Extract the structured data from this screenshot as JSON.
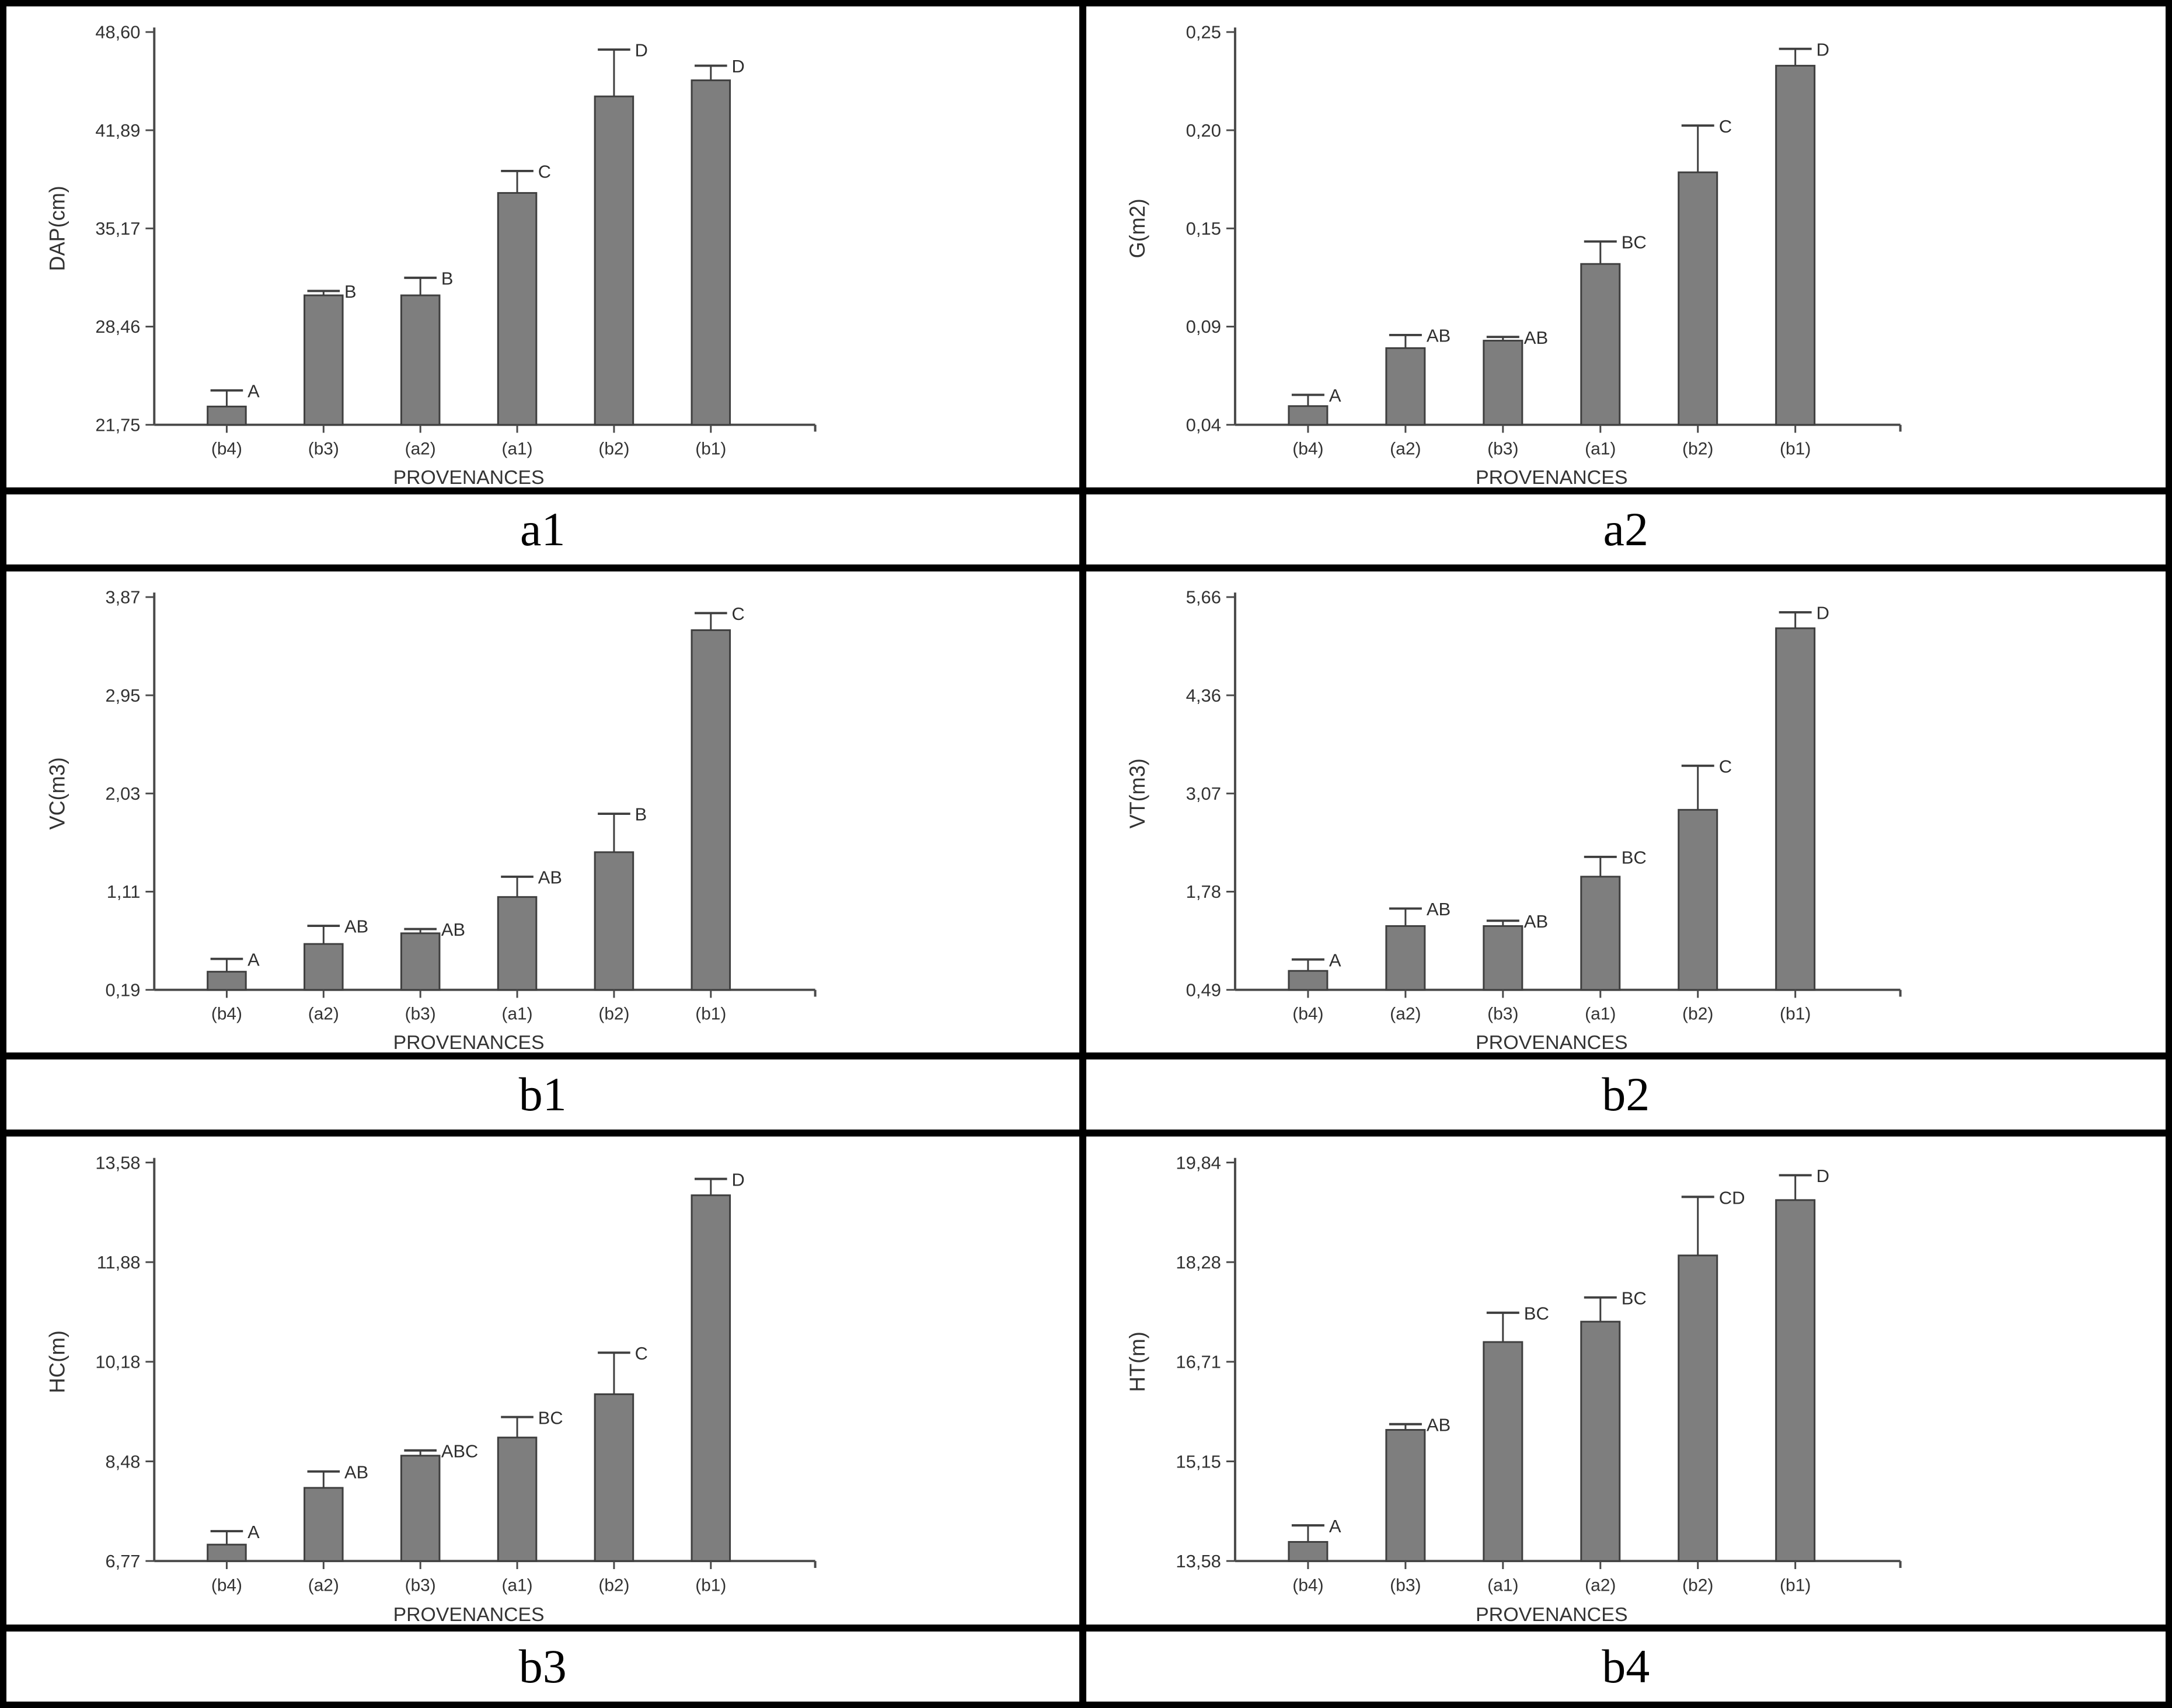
{
  "style": {
    "bar_fill": "#7e7e7e",
    "bar_edge": "#3f3f3f",
    "axis_color": "#4a4a4a",
    "text_color": "#333333"
  },
  "chart_data": [
    {
      "type": "bar",
      "caption": "a1",
      "ylabel": "DAP(cm)",
      "xlabel": "PROVENANCES",
      "ytick_labels": [
        "48,60",
        "41,89",
        "35,17",
        "28,46",
        "21,75"
      ],
      "ymin": 21.75,
      "ymax": 48.6,
      "categories": [
        "(b4)",
        "(b3)",
        "(a2)",
        "(a1)",
        "(b2)",
        "(b1)"
      ],
      "values": [
        23.0,
        30.6,
        30.6,
        37.6,
        44.2,
        45.3
      ],
      "error_tops": [
        24.1,
        30.9,
        31.8,
        39.1,
        47.4,
        46.3
      ],
      "sig_letters": [
        "A",
        "B",
        "B",
        "C",
        "D",
        "D"
      ],
      "grid": false,
      "legend": "none"
    },
    {
      "type": "bar",
      "caption": "a2",
      "ylabel": "G(m2)",
      "xlabel": "PROVENANCES",
      "ytick_labels": [
        "0,25",
        "0,20",
        "0,15",
        "0,09",
        "0,04"
      ],
      "ymin": 0.04,
      "ymax": 0.25,
      "categories": [
        "(b4)",
        "(a2)",
        "(b3)",
        "(a1)",
        "(b2)",
        "(b1)"
      ],
      "values": [
        0.05,
        0.081,
        0.085,
        0.126,
        0.175,
        0.232
      ],
      "error_tops": [
        0.056,
        0.088,
        0.087,
        0.138,
        0.2,
        0.241
      ],
      "sig_letters": [
        "A",
        "AB",
        "AB",
        "BC",
        "C",
        "D"
      ],
      "grid": false,
      "legend": "none"
    },
    {
      "type": "bar",
      "caption": "b1",
      "ylabel": "VC(m3)",
      "xlabel": "PROVENANCES",
      "ytick_labels": [
        "3,87",
        "2,95",
        "2,03",
        "1,11",
        "0,19"
      ],
      "ymin": 0.19,
      "ymax": 3.87,
      "categories": [
        "(b4)",
        "(a2)",
        "(b3)",
        "(a1)",
        "(b2)",
        "(b1)"
      ],
      "values": [
        0.36,
        0.62,
        0.72,
        1.06,
        1.48,
        3.56
      ],
      "error_tops": [
        0.48,
        0.79,
        0.76,
        1.25,
        1.84,
        3.72
      ],
      "sig_letters": [
        "A",
        "AB",
        "AB",
        "AB",
        "B",
        "C"
      ],
      "grid": false,
      "legend": "none"
    },
    {
      "type": "bar",
      "caption": "b2",
      "ylabel": "VT(m3)",
      "xlabel": "PROVENANCES",
      "ytick_labels": [
        "5,66",
        "4,36",
        "3,07",
        "1,78",
        "0,49"
      ],
      "ymin": 0.49,
      "ymax": 5.66,
      "categories": [
        "(b4)",
        "(a2)",
        "(b3)",
        "(a1)",
        "(b2)",
        "(b1)"
      ],
      "values": [
        0.74,
        1.33,
        1.33,
        1.98,
        2.86,
        5.25
      ],
      "error_tops": [
        0.89,
        1.56,
        1.4,
        2.24,
        3.44,
        5.46
      ],
      "sig_letters": [
        "A",
        "AB",
        "AB",
        "BC",
        "C",
        "D"
      ],
      "grid": false,
      "legend": "none"
    },
    {
      "type": "bar",
      "caption": "b3",
      "ylabel": "HC(m)",
      "xlabel": "PROVENANCES",
      "ytick_labels": [
        "13,58",
        "11,88",
        "10,18",
        "8,48",
        "6,77"
      ],
      "ymin": 6.77,
      "ymax": 13.58,
      "categories": [
        "(b4)",
        "(a2)",
        "(b3)",
        "(a1)",
        "(b2)",
        "(b1)"
      ],
      "values": [
        7.05,
        8.02,
        8.57,
        8.88,
        9.62,
        13.02
      ],
      "error_tops": [
        7.28,
        8.3,
        8.66,
        9.23,
        10.33,
        13.3
      ],
      "sig_letters": [
        "A",
        "AB",
        "ABC",
        "BC",
        "C",
        "D"
      ],
      "grid": false,
      "legend": "none"
    },
    {
      "type": "bar",
      "caption": "b4",
      "ylabel": "HT(m)",
      "xlabel": "PROVENANCES",
      "ytick_labels": [
        "19,84",
        "18,28",
        "16,71",
        "15,15",
        "13,58"
      ],
      "ymin": 13.58,
      "ymax": 19.84,
      "categories": [
        "(b4)",
        "(b3)",
        "(a1)",
        "(a2)",
        "(b2)",
        "(b1)"
      ],
      "values": [
        13.88,
        15.64,
        17.02,
        17.34,
        18.38,
        19.25
      ],
      "error_tops": [
        14.14,
        15.73,
        17.48,
        17.72,
        19.3,
        19.64
      ],
      "sig_letters": [
        "A",
        "AB",
        "BC",
        "BC",
        "CD",
        "D"
      ],
      "grid": false,
      "legend": "none"
    }
  ]
}
